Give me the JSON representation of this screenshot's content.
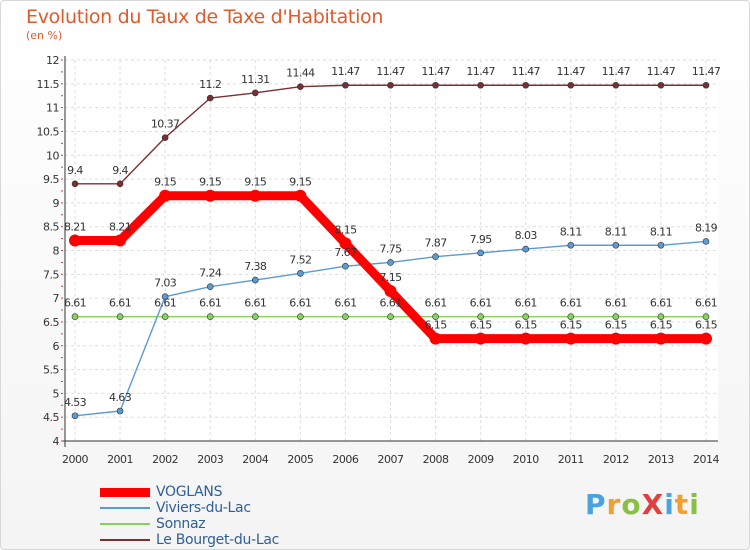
{
  "header": {
    "title": "Evolution du Taux de Taxe d'Habitation",
    "unit": "(en %)"
  },
  "logo": {
    "text": "ProXiti",
    "colors": [
      "#4aa3df",
      "#f0a030",
      "#88c043",
      "#e04040",
      "#4aa3df",
      "#f0a030",
      "#88c043"
    ]
  },
  "chart_data": {
    "type": "line",
    "title": "Evolution du Taux de Taxe d'Habitation",
    "ylabel": "(en %)",
    "xlabel": "",
    "x": [
      "2000",
      "2001",
      "2002",
      "2003",
      "2004",
      "2005",
      "2006",
      "2007",
      "2008",
      "2009",
      "2010",
      "2011",
      "2012",
      "2013",
      "2014"
    ],
    "ylim": [
      4,
      12
    ],
    "yticks": [
      "4",
      "4.5",
      "5",
      "5.5",
      "6",
      "6.5",
      "7",
      "7.5",
      "8",
      "8.5",
      "9",
      "9.5",
      "10",
      "10.5",
      "11",
      "11.5",
      "12"
    ],
    "grid": true,
    "legend_position": "bottom-left",
    "series": [
      {
        "name": "VOGLANS",
        "color": "#ff0000",
        "values": [
          8.21,
          8.21,
          9.15,
          9.15,
          9.15,
          9.15,
          8.15,
          7.15,
          6.15,
          6.15,
          6.15,
          6.15,
          6.15,
          6.15,
          6.15
        ],
        "labels": [
          "8.21",
          "8.21",
          "9.15",
          "9.15",
          "9.15",
          "9.15",
          "8.15",
          "7.15",
          "6.15",
          "6.15",
          "6.15",
          "6.15",
          "6.15",
          "6.15",
          "6.15"
        ]
      },
      {
        "name": "Viviers-du-Lac",
        "color": "#5b9bd5",
        "values": [
          4.53,
          4.63,
          7.03,
          7.24,
          7.38,
          7.52,
          7.67,
          7.75,
          7.87,
          7.95,
          8.03,
          8.11,
          8.11,
          8.11,
          8.19
        ],
        "labels": [
          "4.53",
          "4.63",
          "7.03",
          "7.24",
          "7.38",
          "7.52",
          "7.67",
          "7.75",
          "7.87",
          "7.95",
          "8.03",
          "8.11",
          "8.11",
          "8.11",
          "8.19"
        ]
      },
      {
        "name": "Sonnaz",
        "color": "#88d060",
        "values": [
          6.61,
          6.61,
          6.61,
          6.61,
          6.61,
          6.61,
          6.61,
          6.61,
          6.61,
          6.61,
          6.61,
          6.61,
          6.61,
          6.61,
          6.61
        ],
        "labels": [
          "6.61",
          "6.61",
          "6.61",
          "6.61",
          "6.61",
          "6.61",
          "6.61",
          "6.61",
          "6.61",
          "6.61",
          "6.61",
          "6.61",
          "6.61",
          "6.61",
          "6.61"
        ]
      },
      {
        "name": "Le Bourget-du-Lac",
        "color": "#7a3030",
        "values": [
          9.4,
          9.4,
          10.37,
          11.2,
          11.31,
          11.44,
          11.47,
          11.47,
          11.47,
          11.47,
          11.47,
          11.47,
          11.47,
          11.47,
          11.47
        ],
        "labels": [
          "9.4",
          "9.4",
          "10.37",
          "11.2",
          "11.31",
          "11.44",
          "11.47",
          "11.47",
          "11.47",
          "11.47",
          "11.47",
          "11.47",
          "11.47",
          "11.47",
          "11.47"
        ]
      }
    ]
  }
}
